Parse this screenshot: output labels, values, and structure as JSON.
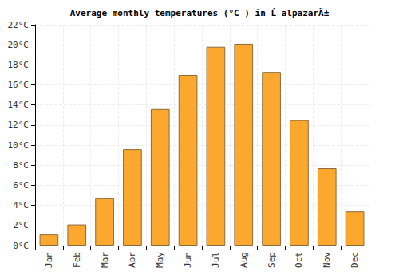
{
  "chart_data": {
    "type": "bar",
    "title": "Average monthly temperatures (°C ) in Ĺ alpazarÄ±",
    "categories": [
      "Jan",
      "Feb",
      "Mar",
      "Apr",
      "May",
      "Jun",
      "Jul",
      "Aug",
      "Sep",
      "Oct",
      "Nov",
      "Dec"
    ],
    "values": [
      1.1,
      2.1,
      4.7,
      9.6,
      13.6,
      17.0,
      19.8,
      20.1,
      17.3,
      12.5,
      7.7,
      3.4
    ],
    "color": "#fca82e",
    "ylim": [
      0,
      22
    ],
    "yticks": [
      {
        "value": 0,
        "label": "0°C"
      },
      {
        "value": 2,
        "label": "2°C"
      },
      {
        "value": 4,
        "label": "4°C"
      },
      {
        "value": 6,
        "label": "6°C"
      },
      {
        "value": 8,
        "label": "8°C"
      },
      {
        "value": 10,
        "label": "10°C"
      },
      {
        "value": 12,
        "label": "12°C"
      },
      {
        "value": 14,
        "label": "14°C"
      },
      {
        "value": 16,
        "label": "16°C"
      },
      {
        "value": 18,
        "label": "18°C"
      },
      {
        "value": 20,
        "label": "20°C"
      },
      {
        "value": 22,
        "label": "22°C"
      }
    ],
    "grid": true
  }
}
